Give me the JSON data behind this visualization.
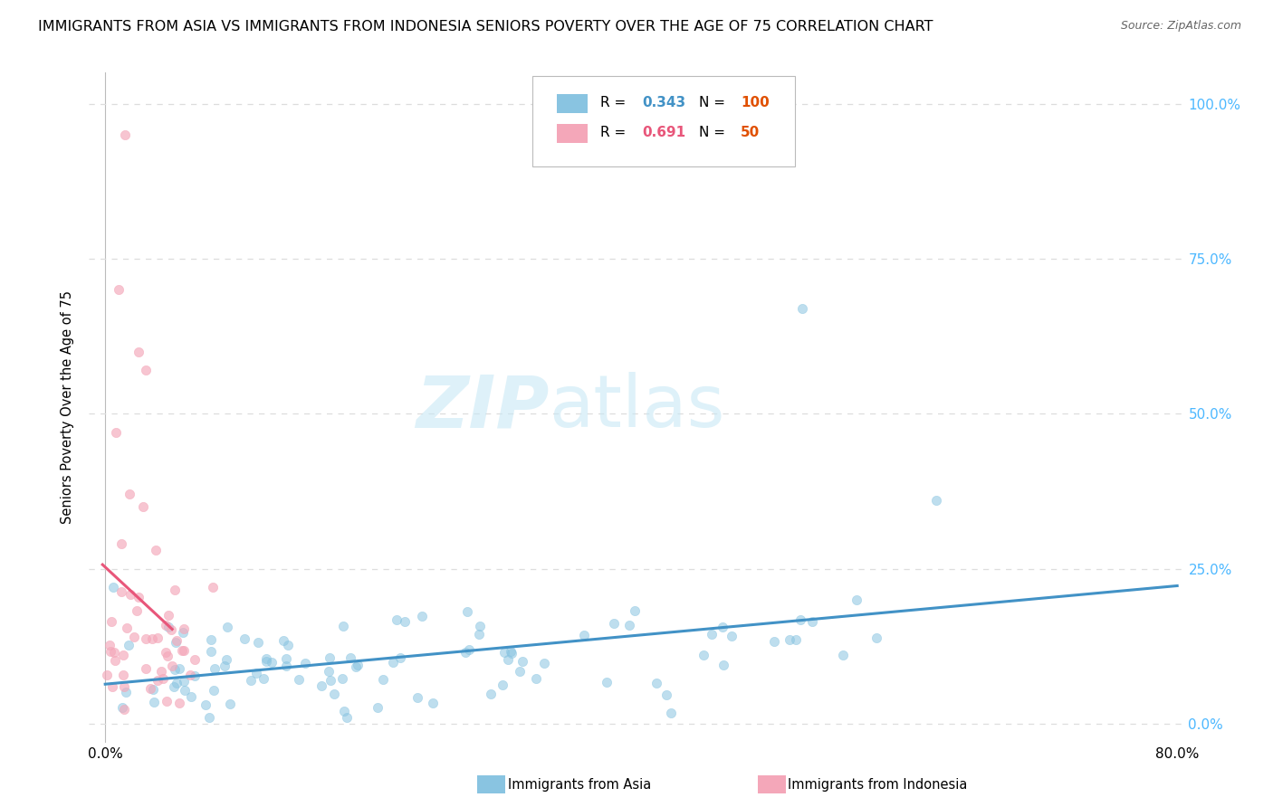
{
  "title": "IMMIGRANTS FROM ASIA VS IMMIGRANTS FROM INDONESIA SENIORS POVERTY OVER THE AGE OF 75 CORRELATION CHART",
  "source": "Source: ZipAtlas.com",
  "ylabel": "Seniors Poverty Over the Age of 75",
  "watermark_line1": "ZIP",
  "watermark_line2": "atlas",
  "legend_asia_label": "Immigrants from Asia",
  "legend_indonesia_label": "Immigrants from Indonesia",
  "background_color": "#ffffff",
  "grid_color": "#dddddd",
  "scatter_asia_color": "#89c4e1",
  "scatter_indonesia_color": "#f4a7b9",
  "trend_asia_color": "#4292c6",
  "trend_indonesia_color": "#e8567a",
  "right_axis_color": "#4db8ff",
  "xmin": 0.0,
  "xmax": 0.8,
  "ymin": 0.0,
  "ymax": 1.0,
  "title_fontsize": 11.5,
  "source_fontsize": 9,
  "watermark_color": "#c8e8f5",
  "watermark_alpha": 0.6,
  "R_asia": 0.343,
  "N_asia": 100,
  "R_indonesia": 0.691,
  "N_indonesia": 50,
  "legend_R_asia_color": "#4292c6",
  "legend_N_asia_color": "#e05000",
  "legend_R_indo_color": "#e8567a",
  "legend_N_indo_color": "#e05000"
}
